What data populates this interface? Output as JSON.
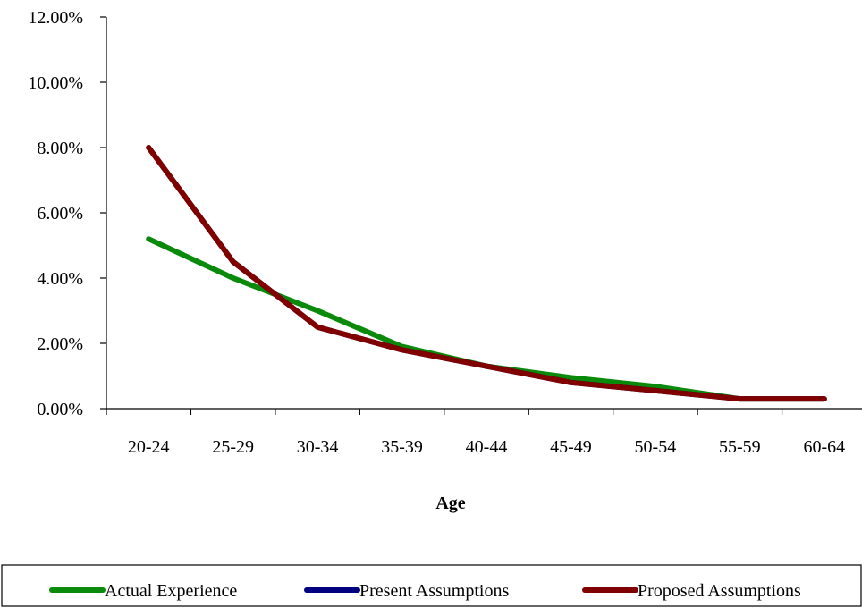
{
  "chart_data": {
    "type": "line",
    "title": "",
    "xlabel": "Age",
    "ylabel": "",
    "categories": [
      "20-24",
      "25-29",
      "30-34",
      "35-39",
      "40-44",
      "45-49",
      "50-54",
      "55-59",
      "60-64"
    ],
    "ylim": [
      0,
      0.12
    ],
    "yticks": [
      "0.00%",
      "2.00%",
      "4.00%",
      "6.00%",
      "8.00%",
      "10.00%",
      "12.00%"
    ],
    "grid": false,
    "legend_position": "bottom",
    "series": [
      {
        "name": "Actual Experience",
        "color": "#0a8a0a",
        "values": [
          0.052,
          0.04,
          0.03,
          0.019,
          0.013,
          0.0095,
          0.0068,
          0.003,
          0.003
        ]
      },
      {
        "name": "Present Assumptions",
        "color": "#000080",
        "values": [
          0.08,
          0.045,
          0.025,
          0.018,
          0.013,
          0.008,
          0.0055,
          0.003,
          0.003
        ]
      },
      {
        "name": "Proposed Assumptions",
        "color": "#800000",
        "values": [
          0.08,
          0.045,
          0.025,
          0.018,
          0.013,
          0.008,
          0.0055,
          0.003,
          0.003
        ]
      }
    ]
  }
}
